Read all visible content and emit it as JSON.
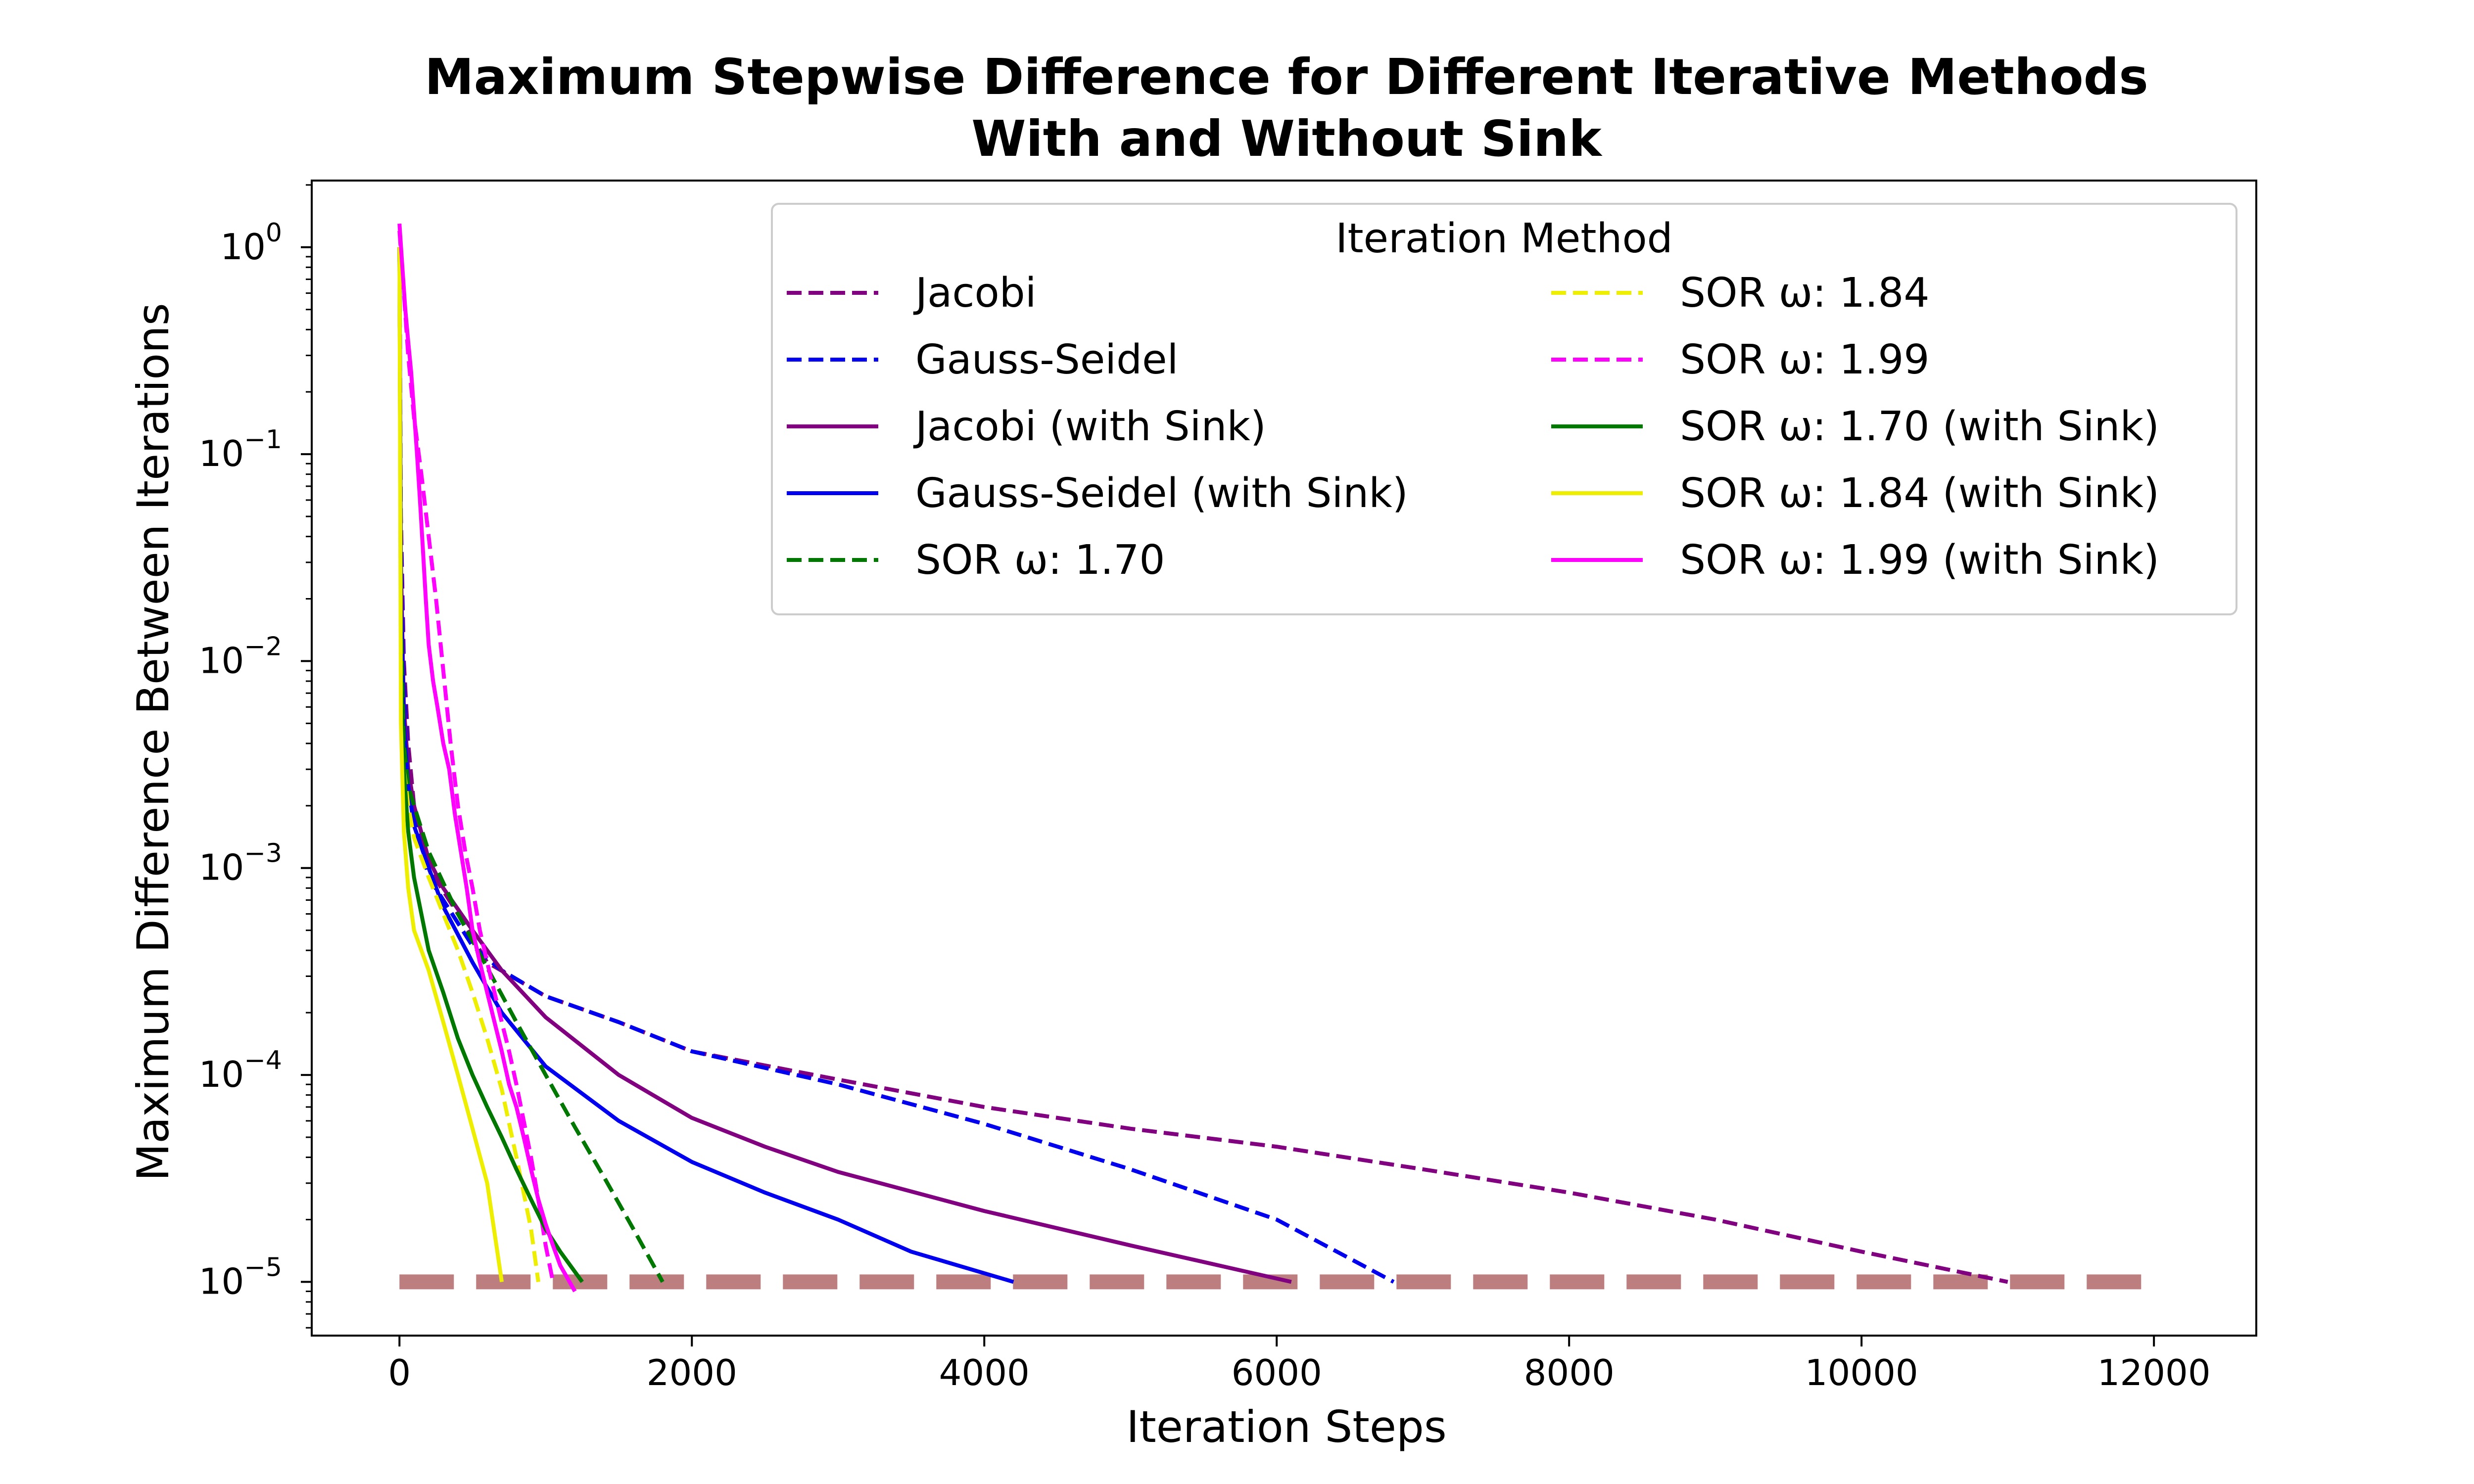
{
  "chart_data": {
    "type": "line",
    "title_lines": [
      "Maximum Stepwise Difference for Different Iterative Methods",
      "With and Without Sink"
    ],
    "xlabel": "Iteration Steps",
    "ylabel": "Maximum Difference Between Iterations",
    "x_ticks": [
      "0",
      "2000",
      "4000",
      "6000",
      "8000",
      "10000",
      "12000"
    ],
    "x_tick_values": [
      0,
      2000,
      4000,
      6000,
      8000,
      10000,
      12000
    ],
    "y_ticks": [
      {
        "base": "10",
        "exp": "0",
        "value": 1
      },
      {
        "base": "10",
        "exp": "−1",
        "value": 0.1
      },
      {
        "base": "10",
        "exp": "−2",
        "value": 0.01
      },
      {
        "base": "10",
        "exp": "−3",
        "value": 0.001
      },
      {
        "base": "10",
        "exp": "−4",
        "value": 0.0001
      },
      {
        "base": "10",
        "exp": "−5",
        "value": 1e-05
      }
    ],
    "xlim": [
      -600,
      12700
    ],
    "ylim": [
      5.5e-06,
      2.1
    ],
    "y_scale": "log",
    "legend": {
      "title": "Iteration Method",
      "placement": "upper right",
      "columns": 2
    },
    "threshold": {
      "value": 1e-05,
      "x_range": [
        0,
        12000
      ],
      "color": "#bc7e7e",
      "style": "dashed"
    },
    "series": [
      {
        "name": "Jacobi",
        "color": "#800080",
        "style": "dashed",
        "points": [
          [
            0,
            1.0
          ],
          [
            10,
            0.05
          ],
          [
            30,
            0.01
          ],
          [
            60,
            0.004
          ],
          [
            100,
            0.002
          ],
          [
            200,
            0.001
          ],
          [
            400,
            0.0006
          ],
          [
            600,
            0.00035
          ],
          [
            1000,
            0.00024
          ],
          [
            1500,
            0.00018
          ],
          [
            2000,
            0.00013
          ],
          [
            3000,
            9.5e-05
          ],
          [
            4000,
            7e-05
          ],
          [
            5000,
            5.5e-05
          ],
          [
            6000,
            4.5e-05
          ],
          [
            7000,
            3.5e-05
          ],
          [
            8000,
            2.7e-05
          ],
          [
            9000,
            2e-05
          ],
          [
            10000,
            1.4e-05
          ],
          [
            11000,
            1e-05
          ]
        ]
      },
      {
        "name": "Gauss-Seidel",
        "color": "#0000ee",
        "style": "dashed",
        "points": [
          [
            0,
            1.0
          ],
          [
            10,
            0.04
          ],
          [
            30,
            0.008
          ],
          [
            60,
            0.003
          ],
          [
            100,
            0.0018
          ],
          [
            200,
            0.0009
          ],
          [
            300,
            0.0007
          ],
          [
            500,
            0.00042
          ],
          [
            700,
            0.00032
          ],
          [
            1000,
            0.00024
          ],
          [
            1500,
            0.00018
          ],
          [
            2000,
            0.00013
          ],
          [
            3000,
            9e-05
          ],
          [
            4000,
            5.8e-05
          ],
          [
            5000,
            3.5e-05
          ],
          [
            6000,
            2e-05
          ],
          [
            6800,
            1e-05
          ]
        ]
      },
      {
        "name": "Jacobi (with Sink)",
        "color": "#800080",
        "style": "solid",
        "points": [
          [
            0,
            1.0
          ],
          [
            10,
            0.03
          ],
          [
            30,
            0.006
          ],
          [
            60,
            0.003
          ],
          [
            100,
            0.002
          ],
          [
            200,
            0.0011
          ],
          [
            300,
            0.0008
          ],
          [
            500,
            0.0005
          ],
          [
            700,
            0.00032
          ],
          [
            1000,
            0.00019
          ],
          [
            1500,
            0.0001
          ],
          [
            2000,
            6.2e-05
          ],
          [
            2500,
            4.5e-05
          ],
          [
            3000,
            3.4e-05
          ],
          [
            4000,
            2.2e-05
          ],
          [
            5000,
            1.5e-05
          ],
          [
            6100,
            1e-05
          ]
        ]
      },
      {
        "name": "Gauss-Seidel (with Sink)",
        "color": "#0000ee",
        "style": "solid",
        "points": [
          [
            0,
            1.0
          ],
          [
            10,
            0.02
          ],
          [
            30,
            0.005
          ],
          [
            60,
            0.0025
          ],
          [
            100,
            0.0016
          ],
          [
            200,
            0.001
          ],
          [
            300,
            0.00065
          ],
          [
            500,
            0.00035
          ],
          [
            700,
            0.0002
          ],
          [
            1000,
            0.00011
          ],
          [
            1500,
            6e-05
          ],
          [
            2000,
            3.8e-05
          ],
          [
            2500,
            2.7e-05
          ],
          [
            3000,
            2e-05
          ],
          [
            3500,
            1.4e-05
          ],
          [
            4200,
            1e-05
          ]
        ]
      },
      {
        "name": "SOR ω: 1.70",
        "color": "#007700",
        "style": "dashed",
        "points": [
          [
            0,
            1.0
          ],
          [
            10,
            0.015
          ],
          [
            30,
            0.004
          ],
          [
            60,
            0.0025
          ],
          [
            100,
            0.002
          ],
          [
            200,
            0.0012
          ],
          [
            400,
            0.0006
          ],
          [
            600,
            0.00033
          ],
          [
            800,
            0.00018
          ],
          [
            1000,
            0.0001
          ],
          [
            1200,
            5.6e-05
          ],
          [
            1400,
            3.2e-05
          ],
          [
            1600,
            1.8e-05
          ],
          [
            1800,
            1e-05
          ]
        ]
      },
      {
        "name": "SOR ω: 1.84",
        "color": "#eeee00",
        "style": "dashed",
        "points": [
          [
            0,
            1.0
          ],
          [
            10,
            0.01
          ],
          [
            30,
            0.003
          ],
          [
            60,
            0.002
          ],
          [
            100,
            0.0014
          ],
          [
            200,
            0.0009
          ],
          [
            300,
            0.0006
          ],
          [
            400,
            0.0004
          ],
          [
            500,
            0.00025
          ],
          [
            600,
            0.00015
          ],
          [
            700,
            8.5e-05
          ],
          [
            800,
            4e-05
          ],
          [
            900,
            1.8e-05
          ],
          [
            950,
            1e-05
          ]
        ]
      },
      {
        "name": "SOR ω: 1.99",
        "color": "#ff00ff",
        "style": "dashed",
        "points": [
          [
            0,
            1.2
          ],
          [
            30,
            0.6
          ],
          [
            60,
            0.3
          ],
          [
            100,
            0.15
          ],
          [
            150,
            0.08
          ],
          [
            200,
            0.04
          ],
          [
            250,
            0.02
          ],
          [
            300,
            0.009
          ],
          [
            350,
            0.004
          ],
          [
            400,
            0.002
          ],
          [
            450,
            0.0012
          ],
          [
            500,
            0.0008
          ],
          [
            550,
            0.0005
          ],
          [
            600,
            0.00035
          ],
          [
            650,
            0.00025
          ],
          [
            700,
            0.00018
          ],
          [
            750,
            0.00013
          ],
          [
            800,
            9e-05
          ],
          [
            850,
            6e-05
          ],
          [
            900,
            4e-05
          ],
          [
            950,
            2.5e-05
          ],
          [
            1000,
            1.5e-05
          ],
          [
            1050,
            1e-05
          ]
        ]
      },
      {
        "name": "SOR ω: 1.70 (with Sink)",
        "color": "#007700",
        "style": "solid",
        "points": [
          [
            0,
            1.0
          ],
          [
            10,
            0.01
          ],
          [
            30,
            0.003
          ],
          [
            60,
            0.0015
          ],
          [
            100,
            0.0009
          ],
          [
            150,
            0.0006
          ],
          [
            200,
            0.0004
          ],
          [
            300,
            0.00025
          ],
          [
            400,
            0.00015
          ],
          [
            500,
            0.0001
          ],
          [
            600,
            7e-05
          ],
          [
            700,
            5e-05
          ],
          [
            800,
            3.5e-05
          ],
          [
            900,
            2.5e-05
          ],
          [
            1000,
            1.8e-05
          ],
          [
            1100,
            1.4e-05
          ],
          [
            1250,
            1e-05
          ]
        ]
      },
      {
        "name": "SOR ω: 1.84 (with Sink)",
        "color": "#eeee00",
        "style": "solid",
        "points": [
          [
            0,
            1.0
          ],
          [
            10,
            0.005
          ],
          [
            30,
            0.0015
          ],
          [
            60,
            0.0008
          ],
          [
            100,
            0.0005
          ],
          [
            200,
            0.00032
          ],
          [
            300,
            0.00018
          ],
          [
            400,
            0.0001
          ],
          [
            500,
            5.5e-05
          ],
          [
            600,
            3e-05
          ],
          [
            700,
            1e-05
          ]
        ]
      },
      {
        "name": "SOR ω: 1.99 (with Sink)",
        "color": "#ff00ff",
        "style": "solid",
        "points": [
          [
            0,
            1.3
          ],
          [
            20,
            0.8
          ],
          [
            40,
            0.5
          ],
          [
            60,
            0.35
          ],
          [
            80,
            0.25
          ],
          [
            100,
            0.16
          ],
          [
            120,
            0.1
          ],
          [
            140,
            0.06
          ],
          [
            160,
            0.035
          ],
          [
            180,
            0.02
          ],
          [
            200,
            0.012
          ],
          [
            230,
            0.008
          ],
          [
            260,
            0.006
          ],
          [
            300,
            0.004
          ],
          [
            340,
            0.003
          ],
          [
            380,
            0.0018
          ],
          [
            420,
            0.0012
          ],
          [
            460,
            0.0008
          ],
          [
            500,
            0.0005
          ],
          [
            550,
            0.00035
          ],
          [
            600,
            0.00025
          ],
          [
            650,
            0.00018
          ],
          [
            700,
            0.00013
          ],
          [
            750,
            9e-05
          ],
          [
            800,
            7e-05
          ],
          [
            850,
            5e-05
          ],
          [
            900,
            3.5e-05
          ],
          [
            950,
            2.5e-05
          ],
          [
            1000,
            1.9e-05
          ],
          [
            1050,
            1.5e-05
          ],
          [
            1100,
            1.2e-05
          ],
          [
            1200,
            9e-06
          ]
        ]
      }
    ]
  }
}
